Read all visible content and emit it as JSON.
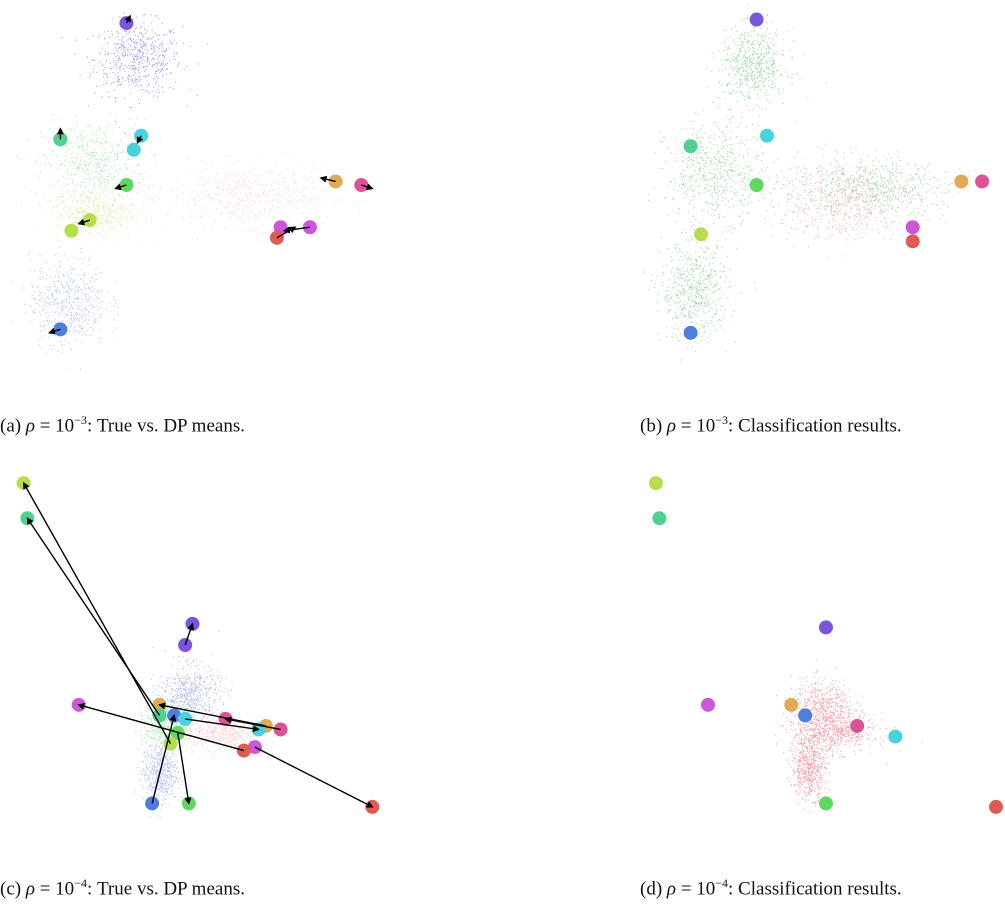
{
  "captions": {
    "a": {
      "prefix": "(a) ",
      "symbol": "ρ",
      "eq": " = 10",
      "exp": "−3",
      "suffix": ": True vs. DP means."
    },
    "b": {
      "prefix": "(b) ",
      "symbol": "ρ",
      "eq": " = 10",
      "exp": "−3",
      "suffix": ": Classification results."
    },
    "c": {
      "prefix": "(c) ",
      "symbol": "ρ",
      "eq": " = 10",
      "exp": "−4",
      "suffix": ": True vs. DP means."
    },
    "d": {
      "prefix": "(d) ",
      "symbol": "ρ",
      "eq": " = 10",
      "exp": "−4",
      "suffix": ": Classification results."
    }
  },
  "chart_data": [
    {
      "panel": "a",
      "type": "scatter",
      "xlim": [
        0,
        10
      ],
      "ylim": [
        0,
        10
      ],
      "grid": false,
      "clouds": [
        {
          "color": "#8c7ff0",
          "cx": 3.5,
          "cy": 8.6,
          "sx": 0.85,
          "sy": 0.75
        },
        {
          "color": "#9ee3a6",
          "cx": 2.3,
          "cy": 5.6,
          "sx": 1.0,
          "sy": 0.9
        },
        {
          "color": "#ffc9d0",
          "cx": 6.5,
          "cy": 4.7,
          "sx": 1.55,
          "sy": 0.6
        },
        {
          "color": "#d8efa0",
          "cx": 2.3,
          "cy": 4.2,
          "sx": 0.8,
          "sy": 0.5
        },
        {
          "color": "#a8b8f2",
          "cx": 1.6,
          "cy": 1.7,
          "sx": 0.75,
          "sy": 0.9
        }
      ],
      "means": [
        {
          "color": "#7b55e0",
          "x": 3.2,
          "y": 9.6
        },
        {
          "color": "#4fd08e",
          "x": 1.4,
          "y": 6.3
        },
        {
          "color": "#48d2dc",
          "x": 3.6,
          "y": 6.4
        },
        {
          "color": "#48d2dc",
          "x": 3.4,
          "y": 6.0
        },
        {
          "color": "#5ed85e",
          "x": 3.2,
          "y": 5.0
        },
        {
          "color": "#b7dc4e",
          "x": 2.2,
          "y": 4.0
        },
        {
          "color": "#b7dc4e",
          "x": 1.7,
          "y": 3.7
        },
        {
          "color": "#e0aa56",
          "x": 8.9,
          "y": 5.1
        },
        {
          "color": "#dd5295",
          "x": 9.6,
          "y": 5.0
        },
        {
          "color": "#cf55dd",
          "x": 7.4,
          "y": 3.8
        },
        {
          "color": "#cf55dd",
          "x": 8.2,
          "y": 3.8
        },
        {
          "color": "#e05a50",
          "x": 7.3,
          "y": 3.5
        },
        {
          "color": "#4f7fdc",
          "x": 1.4,
          "y": 0.9
        }
      ],
      "arrows": [
        {
          "from": [
            3.2,
            9.6
          ],
          "to": [
            3.3,
            9.8
          ]
        },
        {
          "from": [
            1.4,
            6.3
          ],
          "to": [
            1.4,
            6.6
          ]
        },
        {
          "from": [
            3.6,
            6.4
          ],
          "to": [
            3.5,
            6.2
          ]
        },
        {
          "from": [
            3.2,
            5.0
          ],
          "to": [
            2.9,
            4.9
          ]
        },
        {
          "from": [
            2.2,
            4.0
          ],
          "to": [
            1.9,
            3.9
          ]
        },
        {
          "from": [
            8.9,
            5.1
          ],
          "to": [
            8.5,
            5.2
          ]
        },
        {
          "from": [
            9.6,
            5.0
          ],
          "to": [
            9.9,
            4.9
          ]
        },
        {
          "from": [
            8.2,
            3.8
          ],
          "to": [
            7.5,
            3.7
          ]
        },
        {
          "from": [
            7.3,
            3.5
          ],
          "to": [
            7.8,
            3.8
          ]
        },
        {
          "from": [
            1.4,
            0.9
          ],
          "to": [
            1.1,
            0.8
          ]
        }
      ]
    },
    {
      "panel": "b",
      "type": "scatter",
      "xlim": [
        0,
        10
      ],
      "ylim": [
        0,
        10
      ],
      "grid": false,
      "clouds": [
        {
          "color": "#7fd08a",
          "cx": 3.0,
          "cy": 8.4,
          "sx": 0.7,
          "sy": 0.75
        },
        {
          "color": "#7fd08a",
          "cx": 1.9,
          "cy": 5.4,
          "sx": 1.0,
          "sy": 1.0
        },
        {
          "color": "#7fd08a",
          "cx": 6.4,
          "cy": 4.9,
          "sx": 1.5,
          "sy": 0.6
        },
        {
          "color": "#7fd08a",
          "cx": 1.3,
          "cy": 2.0,
          "sx": 0.7,
          "sy": 1.0
        },
        {
          "color": "#f4a0a8",
          "cx": 5.5,
          "cy": 4.6,
          "sx": 1.6,
          "sy": 0.8
        }
      ],
      "means": [
        {
          "color": "#7b55e0",
          "x": 3.1,
          "y": 9.7
        },
        {
          "color": "#48d2dc",
          "x": 3.4,
          "y": 6.4
        },
        {
          "color": "#4fd08e",
          "x": 1.2,
          "y": 6.1
        },
        {
          "color": "#5ed85e",
          "x": 3.1,
          "y": 5.0
        },
        {
          "color": "#b7dc4e",
          "x": 1.5,
          "y": 3.6
        },
        {
          "color": "#4f7fdc",
          "x": 1.2,
          "y": 0.8
        },
        {
          "color": "#e0aa56",
          "x": 9.0,
          "y": 5.1
        },
        {
          "color": "#dd5295",
          "x": 9.6,
          "y": 5.1
        },
        {
          "color": "#cf55dd",
          "x": 7.6,
          "y": 3.8
        },
        {
          "color": "#e05a50",
          "x": 7.6,
          "y": 3.4
        }
      ],
      "arrows": []
    },
    {
      "panel": "c",
      "type": "scatter",
      "xlim": [
        0,
        10
      ],
      "ylim": [
        0,
        10
      ],
      "grid": false,
      "clouds": [
        {
          "color": "#9fa8f0",
          "cx": 4.9,
          "cy": 3.6,
          "sx": 0.6,
          "sy": 0.6
        },
        {
          "color": "#9ee3a6",
          "cx": 4.3,
          "cy": 2.8,
          "sx": 0.45,
          "sy": 0.5
        },
        {
          "color": "#ffc9d0",
          "cx": 5.8,
          "cy": 2.5,
          "sx": 0.7,
          "sy": 0.35
        },
        {
          "color": "#a8b8f2",
          "cx": 4.1,
          "cy": 1.4,
          "sx": 0.35,
          "sy": 0.6
        }
      ],
      "means": [
        {
          "color": "#b7dc4e",
          "x": 0.4,
          "y": 9.6
        },
        {
          "color": "#4fd08e",
          "x": 0.5,
          "y": 8.6
        },
        {
          "color": "#7b55e0",
          "x": 5.0,
          "y": 5.6
        },
        {
          "color": "#7b55e0",
          "x": 4.8,
          "y": 5.0
        },
        {
          "color": "#cf55dd",
          "x": 1.9,
          "y": 3.3
        },
        {
          "color": "#e0aa56",
          "x": 4.1,
          "y": 3.3
        },
        {
          "color": "#4fd08e",
          "x": 4.1,
          "y": 3.0
        },
        {
          "color": "#4f7fdc",
          "x": 4.5,
          "y": 3.0
        },
        {
          "color": "#48d2dc",
          "x": 4.8,
          "y": 2.9
        },
        {
          "color": "#dd5295",
          "x": 5.9,
          "y": 2.9
        },
        {
          "color": "#e0aa56",
          "x": 7.0,
          "y": 2.7
        },
        {
          "color": "#48d2dc",
          "x": 6.8,
          "y": 2.6
        },
        {
          "color": "#dd5295",
          "x": 7.4,
          "y": 2.6
        },
        {
          "color": "#5ed85e",
          "x": 4.6,
          "y": 2.5
        },
        {
          "color": "#b7dc4e",
          "x": 4.4,
          "y": 2.2
        },
        {
          "color": "#cf55dd",
          "x": 6.7,
          "y": 2.1
        },
        {
          "color": "#e05a50",
          "x": 6.4,
          "y": 2.0
        },
        {
          "color": "#4f7fdc",
          "x": 3.9,
          "y": 0.5
        },
        {
          "color": "#5ed85e",
          "x": 4.9,
          "y": 0.5
        },
        {
          "color": "#e05a50",
          "x": 9.9,
          "y": 0.4
        }
      ],
      "arrows": [
        {
          "from": [
            4.4,
            2.2
          ],
          "to": [
            0.4,
            9.6
          ]
        },
        {
          "from": [
            4.1,
            3.0
          ],
          "to": [
            0.5,
            8.6
          ]
        },
        {
          "from": [
            4.8,
            5.0
          ],
          "to": [
            5.0,
            5.6
          ]
        },
        {
          "from": [
            6.4,
            2.0
          ],
          "to": [
            1.9,
            3.3
          ]
        },
        {
          "from": [
            7.0,
            2.7
          ],
          "to": [
            4.1,
            3.3
          ]
        },
        {
          "from": [
            7.4,
            2.6
          ],
          "to": [
            5.9,
            2.9
          ]
        },
        {
          "from": [
            4.8,
            2.9
          ],
          "to": [
            6.8,
            2.6
          ]
        },
        {
          "from": [
            3.9,
            0.5
          ],
          "to": [
            4.5,
            3.0
          ]
        },
        {
          "from": [
            4.6,
            2.5
          ],
          "to": [
            4.9,
            0.5
          ]
        },
        {
          "from": [
            6.7,
            2.1
          ],
          "to": [
            9.9,
            0.4
          ]
        }
      ]
    },
    {
      "panel": "d",
      "type": "scatter",
      "xlim": [
        0,
        10
      ],
      "ylim": [
        0,
        10
      ],
      "grid": false,
      "clouds": [
        {
          "color": "#f08c96",
          "cx": 5.0,
          "cy": 3.2,
          "sx": 0.65,
          "sy": 0.6
        },
        {
          "color": "#f08c96",
          "cx": 5.3,
          "cy": 2.5,
          "sx": 0.85,
          "sy": 0.4
        },
        {
          "color": "#f08c96",
          "cx": 4.6,
          "cy": 1.5,
          "sx": 0.35,
          "sy": 0.6
        }
      ],
      "means": [
        {
          "color": "#b7dc4e",
          "x": 0.2,
          "y": 9.6
        },
        {
          "color": "#4fd08e",
          "x": 0.3,
          "y": 8.6
        },
        {
          "color": "#7b55e0",
          "x": 5.1,
          "y": 5.5
        },
        {
          "color": "#cf55dd",
          "x": 1.7,
          "y": 3.3
        },
        {
          "color": "#e0aa56",
          "x": 4.1,
          "y": 3.3
        },
        {
          "color": "#4f7fdc",
          "x": 4.5,
          "y": 3.0
        },
        {
          "color": "#dd5295",
          "x": 6.0,
          "y": 2.7
        },
        {
          "color": "#48d2dc",
          "x": 7.1,
          "y": 2.4
        },
        {
          "color": "#5ed85e",
          "x": 5.1,
          "y": 0.5
        },
        {
          "color": "#e05a50",
          "x": 10.0,
          "y": 0.4
        }
      ],
      "arrows": []
    }
  ]
}
